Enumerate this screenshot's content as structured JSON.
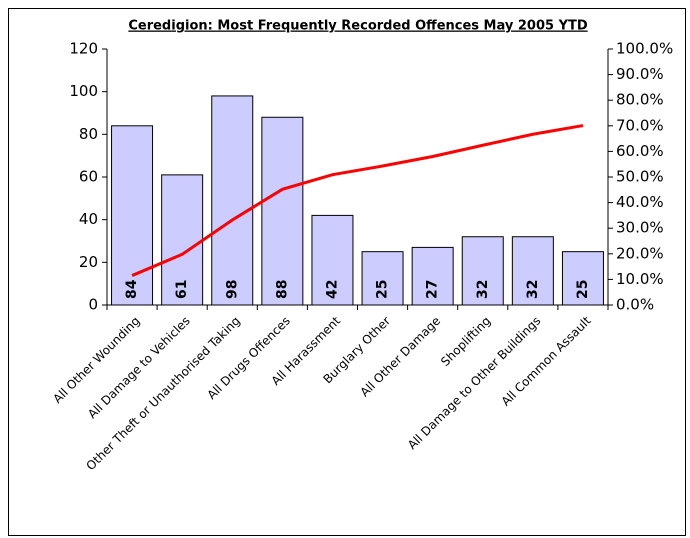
{
  "chart_data": {
    "type": "pareto",
    "title": "Ceredigion: Most Frequently Recorded Offences May 2005 YTD",
    "categories": [
      "All Other Wounding",
      "All Damage to Vehicles",
      "Other Theft or Unauthorised Taking",
      "All Drugs Offences",
      "All Harassment",
      "Burglary Other",
      "All Other Damage",
      "Shoplifting",
      "All Damage to Other Buildings",
      "All Common Assault"
    ],
    "series": [
      {
        "type": "bar",
        "color": "#ccccff",
        "values": [
          84,
          61,
          98,
          88,
          42,
          25,
          27,
          32,
          32,
          25
        ]
      },
      {
        "type": "line",
        "color": "#ff0000",
        "axis": "y2",
        "values": [
          11.5,
          19.8,
          33.2,
          45.2,
          50.9,
          54.3,
          58.0,
          62.4,
          66.7,
          70.1
        ]
      }
    ],
    "ylim": [
      0,
      120
    ],
    "yticks": [
      0,
      20,
      40,
      60,
      80,
      100,
      120
    ],
    "y2lim": [
      0,
      100
    ],
    "y2ticks": [
      {
        "value": 0,
        "label": "0.0%"
      },
      {
        "value": 10,
        "label": "10.0%"
      },
      {
        "value": 20,
        "label": "20.0%"
      },
      {
        "value": 30,
        "label": "30.0%"
      },
      {
        "value": 40,
        "label": "40.0%"
      },
      {
        "value": 50,
        "label": "50.0%"
      },
      {
        "value": 60,
        "label": "60.0%"
      },
      {
        "value": 70,
        "label": "70.0%"
      },
      {
        "value": 80,
        "label": "80.0%"
      },
      {
        "value": 90,
        "label": "90.0%"
      },
      {
        "value": 100,
        "label": "100.0%"
      }
    ]
  }
}
